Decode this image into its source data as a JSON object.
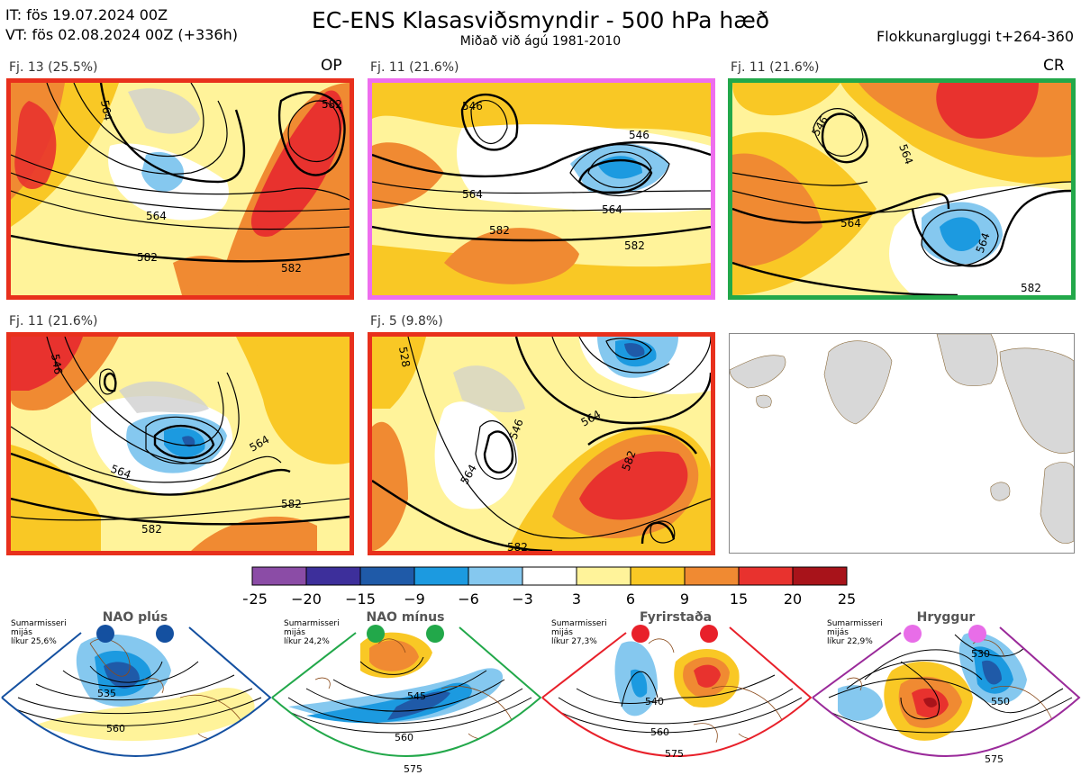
{
  "header": {
    "it": "IT: fös 19.07.2024 00Z",
    "vt": "VT: fös 02.08.2024 00Z  (+336h)",
    "title": "EC-ENS Klasasviðsmyndir - 500 hPa hæð",
    "subtitle": "Miðað við ágú 1981-2010",
    "window": "Flokkunargluggi t+264-360"
  },
  "panels": [
    {
      "label": "Fj. 13 (25.5%)",
      "tag": "OP",
      "border": "#e8301c",
      "contours": [
        "564",
        "564",
        "582",
        "582",
        "582"
      ],
      "anomaly": "warm-east"
    },
    {
      "label": "Fj. 11 (21.6%)",
      "tag": "",
      "border": "#ee6eee",
      "contours": [
        "546",
        "546",
        "564",
        "564",
        "582",
        "582"
      ],
      "anomaly": "cold-center"
    },
    {
      "label": "Fj. 11 (21.6%)",
      "tag": "CR",
      "border": "#22a84a",
      "contours": [
        "546",
        "564",
        "564",
        "564",
        "582"
      ],
      "anomaly": "cold-south"
    },
    {
      "label": "Fj. 11 (21.6%)",
      "tag": "",
      "border": "#e8301c",
      "contours": [
        "546",
        "564",
        "564",
        "582",
        "582"
      ],
      "anomaly": "cold-west"
    },
    {
      "label": "Fj. 5 (9.8%)",
      "tag": "",
      "border": "#e8301c",
      "contours": [
        "528",
        "546",
        "564",
        "564",
        "582",
        "582"
      ],
      "anomaly": "warm-center"
    }
  ],
  "colorbar": {
    "ticks": [
      "−25",
      "−20",
      "−15",
      "−9",
      "−6",
      "−3",
      "3",
      "6",
      "9",
      "15",
      "20",
      "25"
    ],
    "colors": [
      "#8b4ca6",
      "#3d2f9b",
      "#1f5aa8",
      "#1c9ae0",
      "#85c8ef",
      "#ffffff",
      "#fff39a",
      "#f9c825",
      "#f08a32",
      "#e8322e",
      "#a8131a"
    ]
  },
  "regimes": [
    {
      "title": "NAO plús",
      "note": [
        "Sumarmisseri",
        "mijás",
        "líkur 25,6%"
      ],
      "color": "#1450a0",
      "contours": [
        "535",
        "560"
      ]
    },
    {
      "title": "NAO mínus",
      "note": [
        "Sumarmisseri",
        "mijás",
        "líkur 24,2%"
      ],
      "color": "#22a84a",
      "contours": [
        "545",
        "560",
        "575"
      ]
    },
    {
      "title": "Fyrirstaða",
      "note": [
        "Sumarmisseri",
        "mijás",
        "líkur 27,3%"
      ],
      "color": "#e8202a",
      "contours": [
        "540",
        "560",
        "575"
      ]
    },
    {
      "title": "Hryggur",
      "note": [
        "Sumarmisseri",
        "mijás",
        "líkur 22,9%"
      ],
      "color": "#e86de8",
      "contours": [
        "530",
        "550",
        "575"
      ]
    }
  ]
}
